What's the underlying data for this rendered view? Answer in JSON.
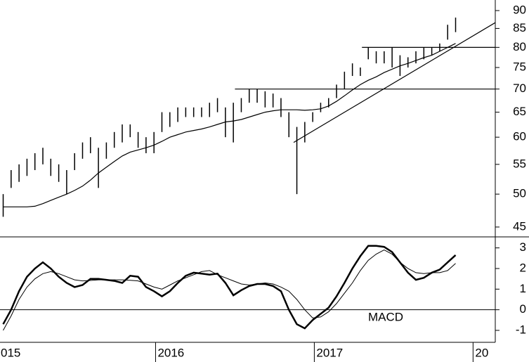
{
  "chart_data": [
    {
      "type": "range-bar",
      "log": true,
      "color": "#000000",
      "x": [
        2015.04,
        2015.09,
        2015.14,
        2015.19,
        2015.24,
        2015.29,
        2015.34,
        2015.39,
        2015.44,
        2015.49,
        2015.54,
        2015.59,
        2015.64,
        2015.69,
        2015.74,
        2015.79,
        2015.84,
        2015.89,
        2015.94,
        2015.99,
        2016.04,
        2016.09,
        2016.14,
        2016.19,
        2016.24,
        2016.29,
        2016.34,
        2016.39,
        2016.44,
        2016.49,
        2016.54,
        2016.59,
        2016.64,
        2016.69,
        2016.74,
        2016.79,
        2016.84,
        2016.89,
        2016.94,
        2016.99,
        2017.04,
        2017.09,
        2017.14,
        2017.19,
        2017.24,
        2017.29,
        2017.34,
        2017.39,
        2017.44,
        2017.49,
        2017.54,
        2017.59,
        2017.64,
        2017.69,
        2017.74,
        2017.79,
        2017.84,
        2017.89
      ],
      "low": [
        46.5,
        51,
        52,
        53,
        54,
        55,
        53,
        52,
        50,
        54,
        56,
        57,
        51,
        56,
        58,
        59,
        60,
        58,
        57,
        57,
        61,
        62,
        63,
        64,
        64,
        64,
        64,
        65,
        60,
        59,
        65,
        67,
        67,
        66,
        66,
        64,
        60,
        50,
        59,
        63,
        65,
        66,
        68,
        70,
        73,
        73,
        77,
        76,
        76,
        75,
        73,
        75,
        76,
        77,
        78,
        79,
        82,
        84
      ],
      "high": [
        50,
        54,
        55,
        56,
        57,
        58,
        56,
        55,
        54,
        57,
        59,
        60,
        58,
        59,
        61,
        62.5,
        62.5,
        61,
        60,
        61,
        65,
        65,
        66,
        66,
        66,
        66,
        67,
        68,
        66,
        67,
        68,
        70,
        70,
        69.5,
        69,
        68,
        65,
        62,
        63,
        65,
        67,
        68,
        71,
        74,
        76,
        75,
        80,
        79,
        79,
        80,
        78,
        77.5,
        79,
        80,
        80,
        81,
        86,
        88
      ],
      "moving_average": [
        48,
        48,
        48,
        48,
        48.1,
        48.5,
        49,
        49.5,
        50,
        50.6,
        51.3,
        52.3,
        53.5,
        54.5,
        55.5,
        56.5,
        57.2,
        57.6,
        58,
        58.5,
        59.2,
        60,
        60.5,
        61,
        61.3,
        61.6,
        62,
        62.5,
        63,
        63.2,
        63.5,
        64,
        64.5,
        65,
        65.3,
        65.5,
        65.5,
        65.5,
        65.4,
        65.5,
        65.7,
        66.3,
        67.3,
        68.5,
        69.8,
        71,
        72,
        72.8,
        73.8,
        74.6,
        75.4,
        76,
        76.7,
        77.4,
        78,
        79,
        80,
        81
      ],
      "lines": [
        {
          "x": [
            2016.87,
            2018.14
          ],
          "y": [
            59,
            86.6
          ]
        },
        {
          "x": [
            2017.3,
            2018.14
          ],
          "y": [
            80,
            80
          ]
        },
        {
          "x": [
            2016.5,
            2018.14
          ],
          "y": [
            70,
            70
          ]
        }
      ],
      "xlim": [
        2015.02,
        2018.14
      ],
      "ylim": [
        43.6,
        93.1
      ],
      "yticks": [
        45,
        50,
        55,
        60,
        65,
        70,
        75,
        80,
        85,
        90
      ]
    },
    {
      "type": "line",
      "annotation": "MACD",
      "x": [
        2015.04,
        2015.09,
        2015.14,
        2015.19,
        2015.24,
        2015.29,
        2015.34,
        2015.39,
        2015.44,
        2015.49,
        2015.54,
        2015.59,
        2015.64,
        2015.69,
        2015.74,
        2015.79,
        2015.84,
        2015.89,
        2015.94,
        2015.99,
        2016.04,
        2016.09,
        2016.14,
        2016.19,
        2016.24,
        2016.29,
        2016.34,
        2016.39,
        2016.44,
        2016.49,
        2016.54,
        2016.59,
        2016.64,
        2016.69,
        2016.74,
        2016.79,
        2016.84,
        2016.89,
        2016.94,
        2016.99,
        2017.04,
        2017.09,
        2017.14,
        2017.19,
        2017.24,
        2017.29,
        2017.34,
        2017.39,
        2017.44,
        2017.49,
        2017.54,
        2017.59,
        2017.64,
        2017.69,
        2017.74,
        2017.79,
        2017.84,
        2017.89
      ],
      "series": [
        {
          "color": "#000000",
          "width": 2.5,
          "values": [
            -0.7,
            0,
            0.9,
            1.6,
            2.0,
            2.3,
            2.0,
            1.6,
            1.3,
            1.1,
            1.2,
            1.5,
            1.5,
            1.45,
            1.4,
            1.3,
            1.65,
            1.6,
            1.1,
            0.9,
            0.65,
            0.9,
            1.3,
            1.65,
            1.8,
            1.75,
            1.7,
            1.75,
            1.3,
            0.7,
            0.95,
            1.15,
            1.25,
            1.25,
            1.15,
            0.9,
            0,
            -0.7,
            -0.9,
            -0.5,
            -0.2,
            0.1,
            0.65,
            1.3,
            2.0,
            2.6,
            3.1,
            3.1,
            3.05,
            2.8,
            2.3,
            1.8,
            1.45,
            1.55,
            1.8,
            1.95,
            2.3,
            2.65
          ]
        },
        {
          "color": "#000000",
          "width": 1,
          "values": [
            -1.0,
            -0.3,
            0.5,
            1.1,
            1.5,
            1.75,
            1.85,
            1.75,
            1.6,
            1.45,
            1.4,
            1.42,
            1.45,
            1.45,
            1.45,
            1.45,
            1.43,
            1.4,
            1.25,
            1.1,
            1.0,
            1.2,
            1.4,
            1.55,
            1.7,
            1.85,
            1.9,
            1.7,
            1.55,
            1.4,
            1.25,
            1.2,
            1.25,
            1.3,
            1.25,
            1.1,
            0.9,
            0.5,
            0,
            -0.4,
            -0.35,
            -0.1,
            0.3,
            0.8,
            1.3,
            1.9,
            2.4,
            2.7,
            2.9,
            2.7,
            2.3,
            2.0,
            1.8,
            1.75,
            1.8,
            1.8,
            1.9,
            2.25
          ]
        }
      ],
      "xlim": [
        2015.02,
        2018.14
      ],
      "ylim": [
        -1.58,
        3.5
      ],
      "yticks": [
        3,
        2,
        1,
        0,
        -1
      ],
      "xticks": [
        {
          "value": 2015,
          "label": "015"
        },
        2016,
        2017,
        {
          "value": 2018,
          "label": "20"
        }
      ]
    }
  ]
}
